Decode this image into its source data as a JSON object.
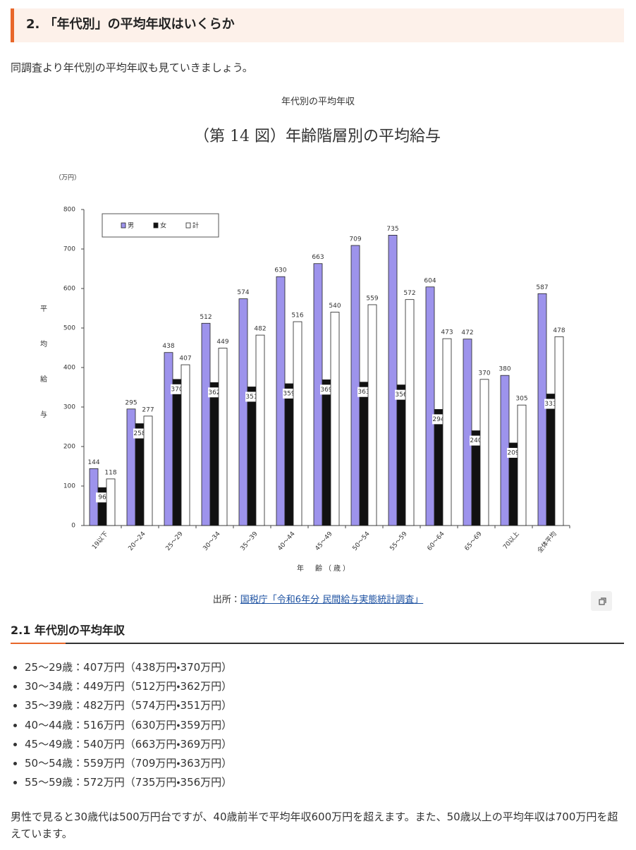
{
  "heading": "2. 「年代別」の平均年収はいくらか",
  "intro": "同調査より年代別の平均年収も見ていきましょう。",
  "figure": {
    "caption": "年代別の平均年収",
    "source_prefix": "出所：",
    "source_link": "国税庁「令和6年分 民間給与実態統計調査」"
  },
  "chart_data": {
    "type": "bar",
    "title": "（第 14 図）年齢階層別の平均給与",
    "unit_label": "（万円）",
    "y_label": "平均給与",
    "x_label": "年　齢（歳）",
    "categories": [
      "19以下",
      "20～24",
      "25～29",
      "30～34",
      "35～39",
      "40～44",
      "45～49",
      "50～54",
      "55～59",
      "60～64",
      "65～69",
      "70以上",
      "全体平均"
    ],
    "series": [
      {
        "name": "男",
        "color": "#9d93ec",
        "values": [
          144,
          295,
          438,
          512,
          574,
          630,
          663,
          709,
          735,
          604,
          472,
          380,
          587
        ]
      },
      {
        "name": "女",
        "color": "#111111",
        "values": [
          96,
          258,
          370,
          362,
          351,
          359,
          369,
          363,
          356,
          294,
          240,
          209,
          333
        ]
      },
      {
        "name": "計",
        "color": "#ffffff",
        "values": [
          118,
          277,
          407,
          449,
          482,
          516,
          540,
          559,
          572,
          473,
          370,
          305,
          478
        ]
      }
    ],
    "ylim": [
      0,
      800
    ],
    "yticks": [
      0,
      100,
      200,
      300,
      400,
      500,
      600,
      700,
      800
    ],
    "legend": "top-left"
  },
  "section": {
    "title": "2.1 年代別の平均年収",
    "items": [
      "25～29歳：407万円（438万円・370万円）",
      "30～34歳：449万円（512万円・362万円）",
      "35～39歳：482万円（574万円・351万円）",
      "40～44歳：516万円（630万円・359万円）",
      "45～49歳：540万円（663万円・369万円）",
      "50～54歳：559万円（709万円・363万円）",
      "55～59歳：572万円（735万円・356万円）"
    ]
  },
  "conclusion": "男性で見ると30歳代は500万円台ですが、40歳前半で平均年収600万円を超えます。また、50歳以上の平均年収は700万円を超えています。"
}
